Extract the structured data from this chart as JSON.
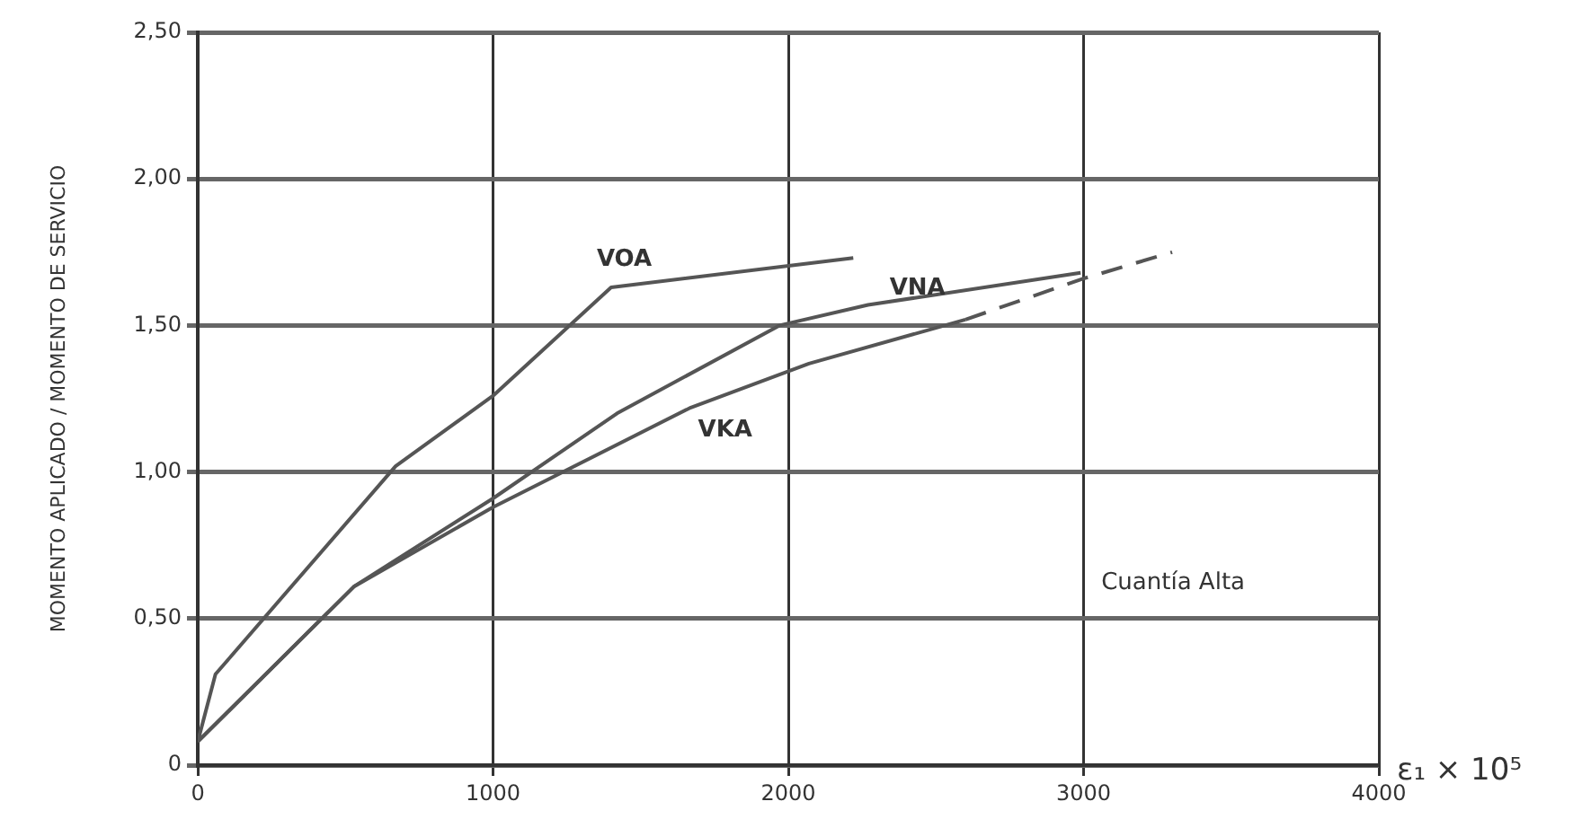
{
  "chart_data": {
    "type": "line",
    "xlabel": "ε₁ × 10⁵",
    "ylabel": "MOMENTO APLICADO / MOMENTO DE SERVICIO",
    "xlim": [
      0,
      4000
    ],
    "ylim": [
      0,
      2.5
    ],
    "xticks": [
      0,
      1000,
      2000,
      3000,
      4000
    ],
    "yticks": [
      0,
      {
        "value": 0.5,
        "label": "0,50"
      },
      {
        "value": 1,
        "label": "1,00"
      },
      {
        "value": 1.5,
        "label": "1,50"
      },
      {
        "value": 2,
        "label": "2,00"
      },
      {
        "value": 2.5,
        "label": "2,50"
      }
    ],
    "grid": true,
    "legend": false,
    "marker": "none",
    "annotations": [
      "Cuantía Alta"
    ],
    "series": [
      {
        "name": "VOA",
        "color": "#555555",
        "x": [
          0,
          60,
          670,
          1000,
          1400,
          2220
        ],
        "values": [
          0.08,
          0.31,
          1.02,
          1.26,
          1.63,
          1.73
        ]
      },
      {
        "name": "VNA",
        "color": "#555555",
        "x": [
          0,
          530,
          1000,
          1420,
          1970,
          2270,
          2990
        ],
        "values": [
          0.08,
          0.61,
          0.91,
          1.2,
          1.5,
          1.57,
          1.68
        ]
      },
      {
        "name": "VKA",
        "color": "#555555",
        "x": [
          0,
          530,
          1000,
          1670,
          2070,
          2600
        ],
        "values": [
          0.08,
          0.61,
          0.88,
          1.22,
          1.37,
          1.52
        ]
      },
      {
        "color": "#555555",
        "line_style": "dashed",
        "x": [
          2600,
          3000,
          3300
        ],
        "values": [
          1.52,
          1.66,
          1.75
        ]
      }
    ]
  }
}
